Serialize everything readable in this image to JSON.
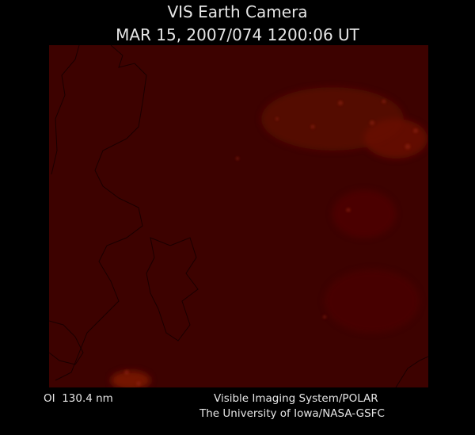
{
  "header": {
    "title": "VIS Earth Camera",
    "timestamp": "MAR 15, 2007/074 1200:06 UT"
  },
  "footer": {
    "wavelength": "OI  130.4 nm",
    "instrument": "Visible Imaging System/POLAR",
    "institution": "The University of Iowa/NASA-GSFC"
  }
}
